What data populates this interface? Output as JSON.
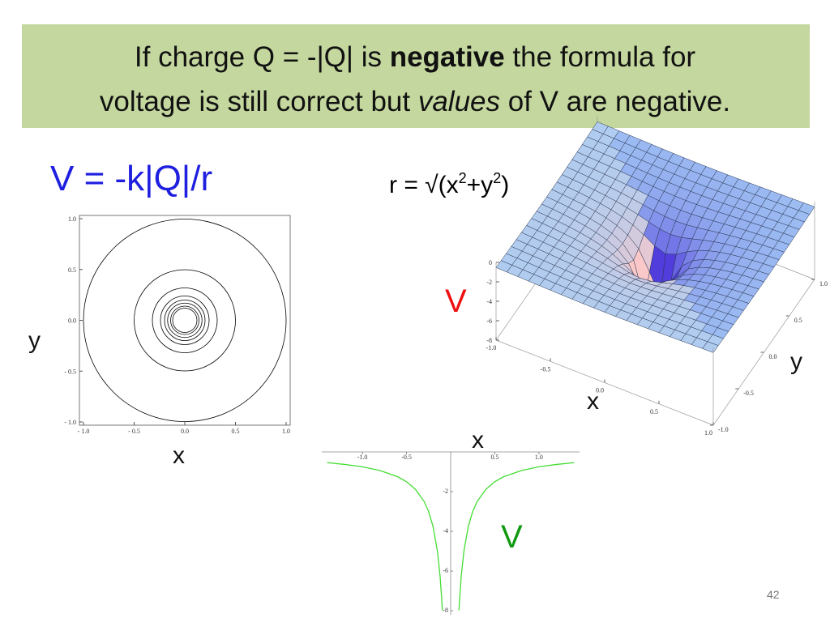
{
  "title": {
    "line1": [
      "If charge Q = -|Q| is ",
      "negative",
      " the formula for"
    ],
    "line2": [
      "voltage is still correct but ",
      "values",
      " of V are negative."
    ]
  },
  "formula": "V = -k|Q|/r",
  "r_formula": [
    "r = √(x",
    "2",
    "+y",
    "2",
    ")"
  ],
  "labels": {
    "contour_y": "y",
    "contour_x": "x",
    "surface_v": "V",
    "surface_y": "y",
    "surface_x": "x",
    "line_x": "x",
    "line_v": "V"
  },
  "page_number": "42",
  "chart_data": [
    {
      "type": "contour",
      "xlim": [
        -1,
        1
      ],
      "ylim": [
        -1,
        1
      ],
      "xticks": [
        {
          "value": -1,
          "label": "- 1.0"
        },
        {
          "value": -0.5,
          "label": "- 0.5"
        },
        {
          "value": 0,
          "label": "0.0"
        },
        {
          "value": 0.5,
          "label": "0.5"
        },
        {
          "value": 1,
          "label": "1.0"
        }
      ],
      "yticks": [
        {
          "value": -1,
          "label": "- 1.0"
        },
        {
          "value": -0.5,
          "label": "- 0.5"
        },
        {
          "value": 0,
          "label": "0.0"
        },
        {
          "value": 0.5,
          "label": "0.5"
        },
        {
          "value": 1,
          "label": "1.0"
        }
      ],
      "radii": [
        1.0,
        0.5,
        0.32,
        0.24,
        0.2,
        0.17,
        0.14,
        0.12
      ],
      "color": "#000000"
    },
    {
      "type": "surface",
      "xlim": [
        -1,
        1
      ],
      "ylim": [
        -1,
        1
      ],
      "zlim": [
        -8,
        0
      ],
      "xticks": [
        {
          "value": -1,
          "label": "-1.0"
        },
        {
          "value": -0.5,
          "label": "-0.5"
        },
        {
          "value": 0,
          "label": "0.0"
        },
        {
          "value": 0.5,
          "label": "0.5"
        },
        {
          "value": 1,
          "label": "1.0"
        }
      ],
      "yticks": [
        {
          "value": -1,
          "label": "-1.0"
        },
        {
          "value": -0.5,
          "label": "-0.5"
        },
        {
          "value": 0,
          "label": "0.0"
        },
        {
          "value": 0.5,
          "label": "0.5"
        },
        {
          "value": 1,
          "label": "1.0"
        }
      ],
      "zticks": [
        0,
        -2,
        -4,
        -6,
        -8
      ],
      "color": "#a6cdf5"
    },
    {
      "type": "line",
      "xlim": [
        -1.46,
        1.46
      ],
      "ylim": [
        -8.2,
        0
      ],
      "xticks": [
        {
          "value": -1,
          "label": "-1.0"
        },
        {
          "value": -0.5,
          "label": "-0.5"
        },
        {
          "value": 0.5,
          "label": "0.5"
        },
        {
          "value": 1,
          "label": "1.0"
        }
      ],
      "yticks": [
        -2,
        -4,
        -6,
        -8
      ],
      "x": [
        -1.4,
        -1.2,
        -1,
        -0.8,
        -0.6,
        -0.5,
        -0.4,
        -0.3,
        -0.25,
        -0.2,
        -0.15,
        -0.12,
        -0.1,
        -0.094,
        0,
        0.094,
        0.1,
        0.12,
        0.15,
        0.2,
        0.25,
        0.3,
        0.4,
        0.5,
        0.6,
        0.8,
        1,
        1.2,
        1.4
      ],
      "values": [
        -0.54,
        -0.63,
        -0.75,
        -0.94,
        -1.25,
        -1.5,
        -1.88,
        -2.5,
        -3,
        -3.75,
        -5,
        -6.25,
        -7.5,
        -7.98,
        null,
        -7.98,
        -7.5,
        -6.25,
        -5,
        -3.75,
        -3,
        -2.5,
        -1.88,
        -1.5,
        -1.25,
        -0.94,
        -0.75,
        -0.63,
        -0.54
      ],
      "color": "#44dd33"
    }
  ]
}
